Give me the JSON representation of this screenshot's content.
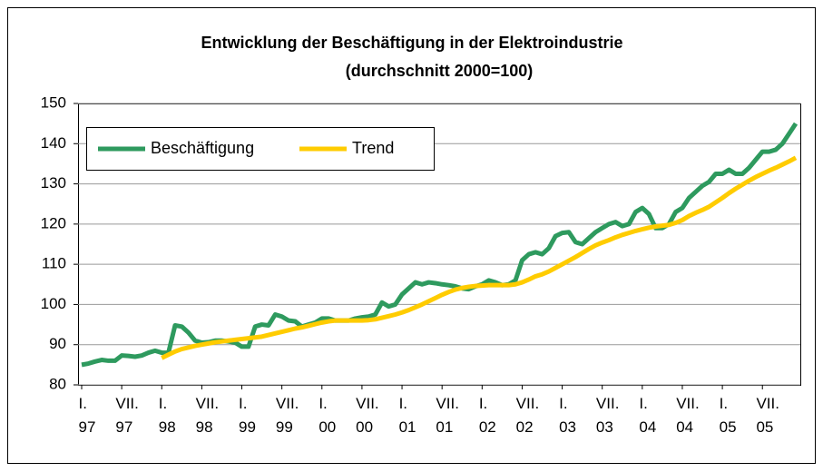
{
  "chart_data": {
    "type": "line",
    "title": "Entwicklung der Beschäftigung in der Elektroindustrie",
    "subtitle": "(durchschnitt 2000=100)",
    "categories": [
      "I.\n97",
      null,
      null,
      null,
      null,
      null,
      "VII.\n97",
      null,
      null,
      null,
      null,
      null,
      "I.\n98",
      null,
      null,
      null,
      null,
      null,
      "VII.\n98",
      null,
      null,
      null,
      null,
      null,
      "I.\n99",
      null,
      null,
      null,
      null,
      null,
      "VII.\n99",
      null,
      null,
      null,
      null,
      null,
      "I.\n00",
      null,
      null,
      null,
      null,
      null,
      "VII.\n00",
      null,
      null,
      null,
      null,
      null,
      "I.\n01",
      null,
      null,
      null,
      null,
      null,
      "VII.\n01",
      null,
      null,
      null,
      null,
      null,
      "I.\n02",
      null,
      null,
      null,
      null,
      null,
      "VII.\n02",
      null,
      null,
      null,
      null,
      null,
      "I.\n03",
      null,
      null,
      null,
      null,
      null,
      "VII.\n03",
      null,
      null,
      null,
      null,
      null,
      "I.\n04",
      null,
      null,
      null,
      null,
      null,
      "VII.\n04",
      null,
      null,
      null,
      null,
      null,
      "I.\n05",
      null,
      null,
      null,
      null,
      null,
      "VII.\n05",
      null,
      null,
      null,
      null,
      null
    ],
    "series": [
      {
        "name": "Beschäftigung",
        "color": "#2e9a5e",
        "values": [
          85,
          85.3,
          85.8,
          86.2,
          86,
          86,
          87.3,
          87.2,
          87,
          87.3,
          88,
          88.5,
          88,
          88,
          94.8,
          94.5,
          93,
          91,
          90.5,
          90.6,
          91,
          91,
          90.8,
          90.5,
          89.5,
          89.5,
          94.5,
          95,
          94.8,
          97.5,
          97,
          96,
          95.8,
          94.5,
          95,
          95.5,
          96.5,
          96.5,
          96,
          96,
          96,
          96.5,
          96.8,
          97,
          97.5,
          100.5,
          99.5,
          100,
          102.5,
          104,
          105.5,
          105,
          105.5,
          105.3,
          105,
          104.8,
          104.5,
          104,
          103.8,
          104.5,
          105,
          106,
          105.5,
          104.8,
          105,
          106,
          111,
          112.5,
          113,
          112.5,
          114,
          117,
          117.8,
          118,
          115.5,
          115,
          116.5,
          118,
          119,
          120,
          120.5,
          119.5,
          120,
          123,
          124,
          122.5,
          119,
          119,
          120,
          123,
          124,
          126.5,
          128,
          129.5,
          130.5,
          132.5,
          132.5,
          133.5,
          132.5,
          132.5,
          134,
          136,
          138,
          138,
          138.5,
          140,
          142.5,
          145
        ]
      },
      {
        "name": "Trend",
        "color": "#ffcc00",
        "values": [
          null,
          null,
          null,
          null,
          null,
          null,
          null,
          null,
          null,
          null,
          null,
          null,
          86.7,
          87.5,
          88.3,
          88.9,
          89.3,
          89.7,
          90,
          90.3,
          90.6,
          90.8,
          91,
          91.2,
          91.4,
          91.6,
          91.8,
          92,
          92.4,
          92.8,
          93.2,
          93.6,
          94,
          94.3,
          94.7,
          95.1,
          95.5,
          95.8,
          96,
          96,
          96,
          96,
          96,
          96.1,
          96.3,
          96.7,
          97.1,
          97.5,
          98,
          98.6,
          99.3,
          100,
          100.8,
          101.6,
          102.4,
          103.1,
          103.7,
          104.1,
          104.4,
          104.6,
          104.7,
          104.8,
          104.8,
          104.8,
          104.8,
          105,
          105.5,
          106.2,
          107,
          107.5,
          108.2,
          109.1,
          110,
          110.9,
          111.8,
          112.8,
          113.8,
          114.7,
          115.4,
          116,
          116.7,
          117.3,
          117.8,
          118.3,
          118.7,
          119.1,
          119.4,
          119.6,
          119.8,
          120.3,
          121,
          122,
          122.8,
          123.5,
          124.3,
          125.4,
          126.5,
          127.7,
          128.8,
          129.8,
          130.8,
          131.7,
          132.5,
          133.3,
          134,
          134.8,
          135.6,
          136.5
        ]
      }
    ],
    "ylim": [
      80,
      150
    ],
    "yticks": [
      80,
      90,
      100,
      110,
      120,
      130,
      140,
      150
    ],
    "grid": true,
    "legend": "top-left"
  }
}
